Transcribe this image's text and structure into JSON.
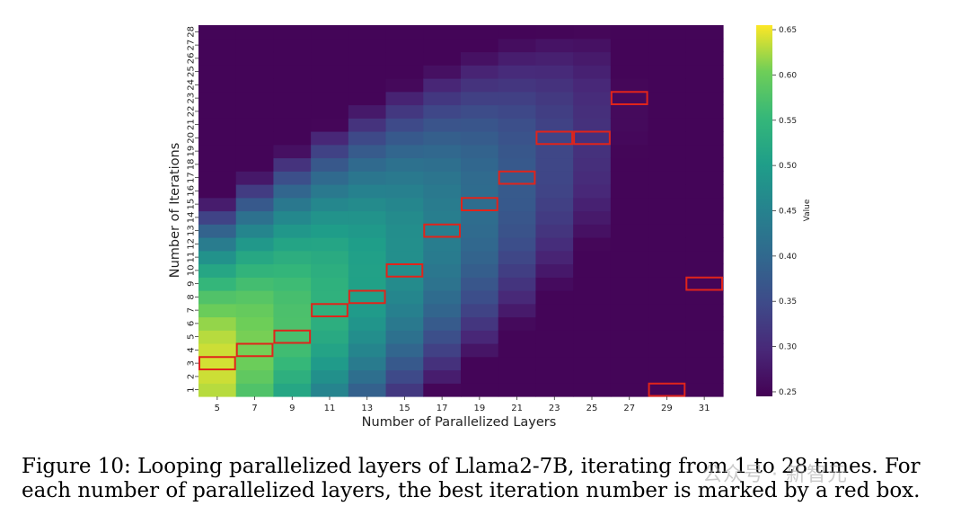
{
  "chart_data": {
    "type": "heatmap",
    "xlabel": "Number of Parallelized Layers",
    "ylabel": "Number of Iterations",
    "x": [
      5,
      7,
      9,
      11,
      13,
      15,
      17,
      19,
      21,
      23,
      25,
      27,
      29,
      31
    ],
    "y": [
      1,
      2,
      3,
      4,
      5,
      6,
      7,
      8,
      9,
      10,
      11,
      12,
      13,
      14,
      15,
      16,
      17,
      18,
      19,
      20,
      21,
      22,
      23,
      24,
      25,
      26,
      27,
      28
    ],
    "colorbar": {
      "label": "Value",
      "range": [
        0.245,
        0.655
      ],
      "ticks": [
        0.25,
        0.3,
        0.35,
        0.4,
        0.45,
        0.5,
        0.55,
        0.6,
        0.65
      ],
      "tick_labels": [
        "0.25",
        "0.30",
        "0.35",
        "0.40",
        "0.45",
        "0.50",
        "0.55",
        "0.60",
        "0.65"
      ],
      "colormap": "viridis"
    },
    "best_iterations": [
      {
        "layers": 5,
        "iteration": 3
      },
      {
        "layers": 7,
        "iteration": 4
      },
      {
        "layers": 9,
        "iteration": 5
      },
      {
        "layers": 11,
        "iteration": 7
      },
      {
        "layers": 13,
        "iteration": 8
      },
      {
        "layers": 15,
        "iteration": 10
      },
      {
        "layers": 17,
        "iteration": 13
      },
      {
        "layers": 19,
        "iteration": 15
      },
      {
        "layers": 21,
        "iteration": 17
      },
      {
        "layers": 23,
        "iteration": 20
      },
      {
        "layers": 25,
        "iteration": 20
      },
      {
        "layers": 27,
        "iteration": 23
      },
      {
        "layers": 29,
        "iteration": 1
      },
      {
        "layers": 31,
        "iteration": 9
      }
    ],
    "marker_color": "#e0241b"
  },
  "caption": "Figure 10: Looping parallelized layers of Llama2-7B, iterating from 1 to 28 times. For each number of parallelized layers, the best iteration number is marked by a red box.",
  "watermark": "公众号 · 新智元"
}
